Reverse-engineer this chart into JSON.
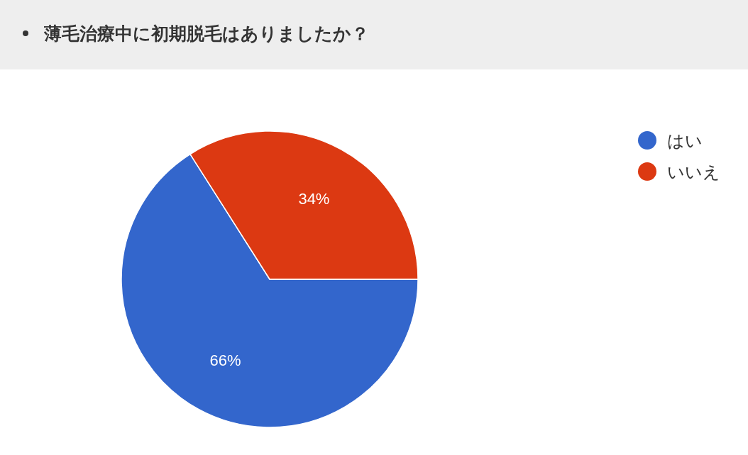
{
  "chart_data": {
    "type": "pie",
    "title": "薄毛治療中に初期脱毛はありましたか？",
    "categories": [
      "はい",
      "いいえ"
    ],
    "values": [
      66,
      34
    ],
    "colors": [
      "#3366cc",
      "#dc3912"
    ],
    "value_labels": [
      "66%",
      "34%"
    ],
    "legend": "top right"
  }
}
